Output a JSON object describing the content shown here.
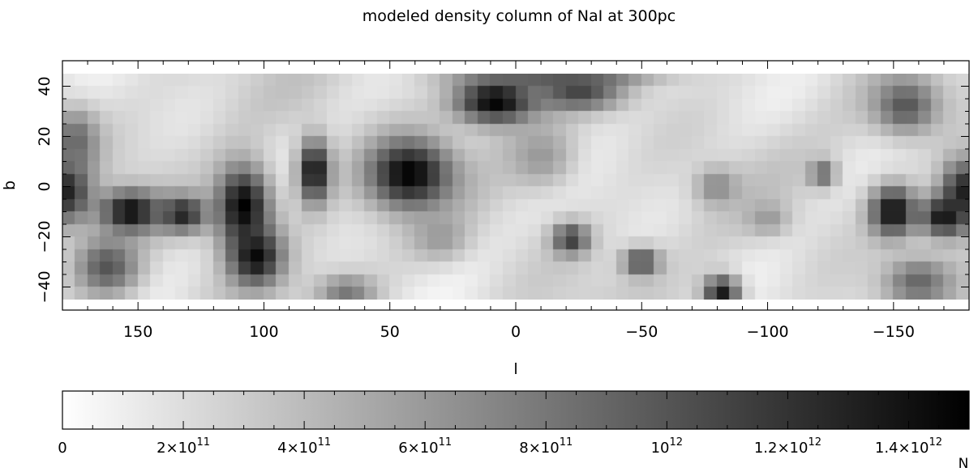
{
  "chart_data": [
    {
      "type": "heatmap",
      "title": "modeled density column of NaI at 300pc",
      "xlabel": "l",
      "ylabel": "b",
      "xlim": [
        180,
        -180
      ],
      "ylim": [
        -50,
        47
      ],
      "x_ticks": [
        {
          "value": 150,
          "label": "150"
        },
        {
          "value": 100,
          "label": "100"
        },
        {
          "value": 50,
          "label": "50"
        },
        {
          "value": 0,
          "label": "0"
        },
        {
          "value": -50,
          "label": "−50"
        },
        {
          "value": -100,
          "label": "−100"
        },
        {
          "value": -150,
          "label": "−150"
        }
      ],
      "y_ticks": [
        {
          "value": 40,
          "label": "40"
        },
        {
          "value": 20,
          "label": "20"
        },
        {
          "value": 0,
          "label": "0"
        },
        {
          "value": -20,
          "label": "−20"
        },
        {
          "value": -40,
          "label": "−40"
        }
      ],
      "grid": false,
      "map_extent": {
        "l": [
          180,
          -180
        ],
        "b": [
          -45,
          45
        ]
      },
      "colormap": {
        "low": "#ffffff",
        "high": "#000000"
      },
      "blobs": [
        {
          "l": 178,
          "b": -2,
          "rl": 10,
          "rb": 14,
          "v": 1300000000000.0
        },
        {
          "l": -178,
          "b": -2,
          "rl": 10,
          "rb": 14,
          "v": 1300000000000.0
        },
        {
          "l": 175,
          "b": 18,
          "rl": 10,
          "rb": 14,
          "v": 900000000000.0
        },
        {
          "l": 153,
          "b": -10,
          "rl": 13,
          "rb": 9,
          "v": 1450000000000.0
        },
        {
          "l": 132,
          "b": -11,
          "rl": 10,
          "rb": 8,
          "v": 1300000000000.0
        },
        {
          "l": 162,
          "b": -32,
          "rl": 14,
          "rb": 13,
          "v": 1000000000000.0
        },
        {
          "l": 108,
          "b": -8,
          "rl": 12,
          "rb": 18,
          "v": 1500000000000.0
        },
        {
          "l": 103,
          "b": -28,
          "rl": 11,
          "rb": 12,
          "v": 1450000000000.0
        },
        {
          "l": 80,
          "b": 6,
          "rl": 7,
          "rb": 14,
          "v": 1450000000000.0
        },
        {
          "l": 67,
          "b": -42,
          "rl": 12,
          "rb": 7,
          "v": 800000000000.0
        },
        {
          "l": 42,
          "b": 5,
          "rl": 18,
          "rb": 15,
          "v": 1500000000000.0
        },
        {
          "l": 8,
          "b": 34,
          "rl": 18,
          "rb": 10,
          "v": 1500000000000.0
        },
        {
          "l": -25,
          "b": 37,
          "rl": 18,
          "rb": 7,
          "v": 1100000000000.0
        },
        {
          "l": -15,
          "b": 45,
          "rl": 40,
          "rb": 5,
          "v": 1100000000000.0
        },
        {
          "l": -10,
          "b": 12,
          "rl": 15,
          "rb": 14,
          "v": 600000000000.0
        },
        {
          "l": -22,
          "b": -21,
          "rl": 8,
          "rb": 7,
          "v": 1150000000000.0
        },
        {
          "l": -50,
          "b": -30,
          "rl": 8,
          "rb": 6,
          "v": 1100000000000.0
        },
        {
          "l": -82,
          "b": -42,
          "rl": 8,
          "rb": 7,
          "v": 1350000000000.0
        },
        {
          "l": -80,
          "b": 0,
          "rl": 9,
          "rb": 8,
          "v": 700000000000.0
        },
        {
          "l": -122,
          "b": 5,
          "rl": 6,
          "rb": 6,
          "v": 900000000000.0
        },
        {
          "l": -100,
          "b": -13,
          "rl": 9,
          "rb": 7,
          "v": 600000000000.0
        },
        {
          "l": -150,
          "b": -10,
          "rl": 10,
          "rb": 11,
          "v": 1450000000000.0
        },
        {
          "l": -170,
          "b": -12,
          "rl": 10,
          "rb": 9,
          "v": 1400000000000.0
        },
        {
          "l": -155,
          "b": 32,
          "rl": 14,
          "rb": 12,
          "v": 1000000000000.0
        },
        {
          "l": -160,
          "b": -38,
          "rl": 14,
          "rb": 10,
          "v": 900000000000.0
        },
        {
          "l": 30,
          "b": -20,
          "rl": 12,
          "rb": 10,
          "v": 600000000000.0
        }
      ]
    },
    {
      "type": "colorbar",
      "label": "N",
      "range": [
        0,
        1500000000000.0
      ],
      "ticks": [
        {
          "value": 0,
          "base": "0",
          "exp": ""
        },
        {
          "value": 200000000000.0,
          "base": "2×10",
          "exp": "11"
        },
        {
          "value": 400000000000.0,
          "base": "4×10",
          "exp": "11"
        },
        {
          "value": 600000000000.0,
          "base": "6×10",
          "exp": "11"
        },
        {
          "value": 800000000000.0,
          "base": "8×10",
          "exp": "11"
        },
        {
          "value": 1000000000000.0,
          "base": "10",
          "exp": "12"
        },
        {
          "value": 1200000000000.0,
          "base": "1.2×10",
          "exp": "12"
        },
        {
          "value": 1400000000000.0,
          "base": "1.4×10",
          "exp": "12"
        }
      ]
    }
  ]
}
